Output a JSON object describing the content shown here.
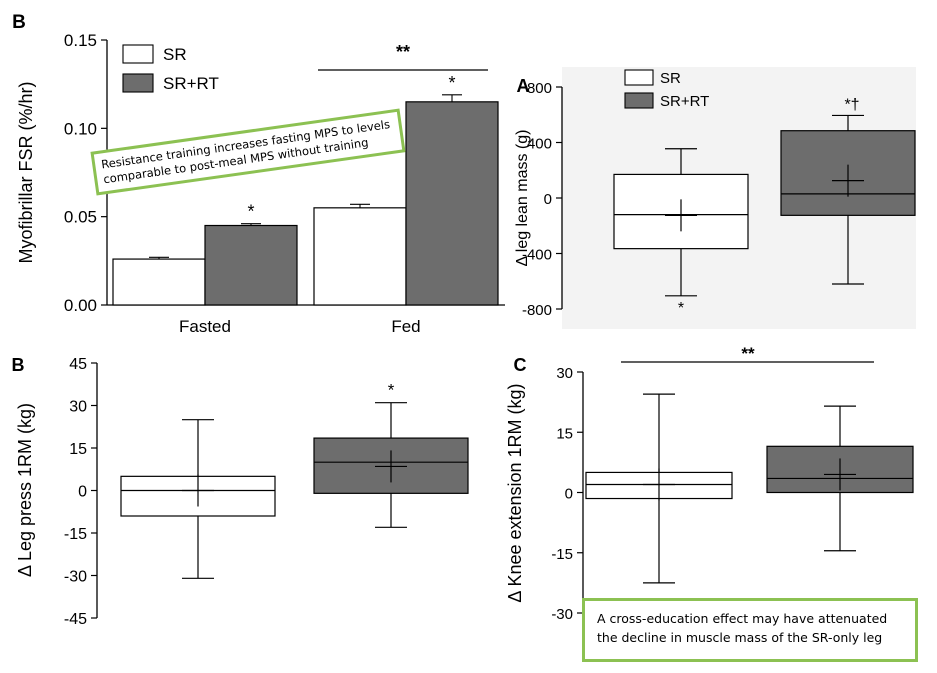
{
  "chart_data": [
    {
      "id": "fsr",
      "type": "bar",
      "panel_label": "B",
      "ylabel": "Myofibrillar FSR (%/hr)",
      "ylim": [
        0,
        0.15
      ],
      "yticks": [
        "0.00",
        "0.05",
        "0.10",
        "0.15"
      ],
      "categories": [
        "Fasted",
        "Fed"
      ],
      "series": [
        {
          "name": "SR",
          "values": [
            0.026,
            0.055
          ],
          "errors": [
            0.001,
            0.002
          ],
          "color": "#ffffff"
        },
        {
          "name": "SR+RT",
          "values": [
            0.045,
            0.115
          ],
          "errors": [
            0.001,
            0.004
          ],
          "color": "#6d6d6d"
        }
      ],
      "marks": {
        "sig_fasted": "*",
        "sig_fed": "*",
        "fed_group": "**"
      },
      "legend": "top-left"
    },
    {
      "id": "lean",
      "type": "box",
      "panel_label": "A",
      "ylabel": "Δ leg lean mass (g)",
      "ylim": [
        -800,
        800
      ],
      "yticks": [
        "800",
        "400",
        "0",
        "-400",
        "-800"
      ],
      "series": [
        {
          "name": "SR",
          "min": -705,
          "q1": -365,
          "median": -120,
          "q3": 170,
          "max": 355,
          "mean": -125,
          "color": "#ffffff"
        },
        {
          "name": "SR+RT",
          "min": -620,
          "q1": -125,
          "median": 30,
          "q3": 485,
          "max": 595,
          "mean": 125,
          "color": "#6d6d6d"
        }
      ],
      "marks": {
        "sr": "*",
        "srrt": "*†"
      },
      "legend": "top-left"
    },
    {
      "id": "legpress",
      "type": "box",
      "panel_label": "B",
      "ylabel": "Δ Leg press 1RM (kg)",
      "ylim": [
        -45,
        45
      ],
      "yticks": [
        "45",
        "30",
        "15",
        "0",
        "-15",
        "-30",
        "-45"
      ],
      "series": [
        {
          "name": "SR",
          "min": -31,
          "q1": -9,
          "median": 0,
          "q3": 5,
          "max": 25,
          "mean": 0,
          "color": "#ffffff"
        },
        {
          "name": "SR+RT",
          "min": -13,
          "q1": -1,
          "median": 10,
          "q3": 18.5,
          "max": 31,
          "mean": 8.5,
          "color": "#6d6d6d"
        }
      ],
      "marks": {
        "srrt": "*"
      }
    },
    {
      "id": "knee",
      "type": "box",
      "panel_label": "C",
      "ylabel": "Δ Knee extension 1RM (kg)",
      "ylim": [
        -30,
        30
      ],
      "yticks": [
        "30",
        "15",
        "0",
        "-15",
        "-30"
      ],
      "series": [
        {
          "name": "SR",
          "min": -22.5,
          "q1": -1.5,
          "median": 2,
          "q3": 5,
          "max": 24.5,
          "mean": 2,
          "color": "#ffffff"
        },
        {
          "name": "SR+RT",
          "min": -14.5,
          "q1": 0,
          "median": 3.5,
          "q3": 11.5,
          "max": 21.5,
          "mean": 4.5,
          "color": "#6d6d6d"
        }
      ],
      "marks": {
        "between": "**"
      }
    }
  ],
  "annotations": {
    "callout1": "Resistance training increases fasting MPS to levels comparable to post-meal MPS without training",
    "callout2": "A cross-education effect may have attenuated the decline in muscle mass of the SR-only leg"
  }
}
